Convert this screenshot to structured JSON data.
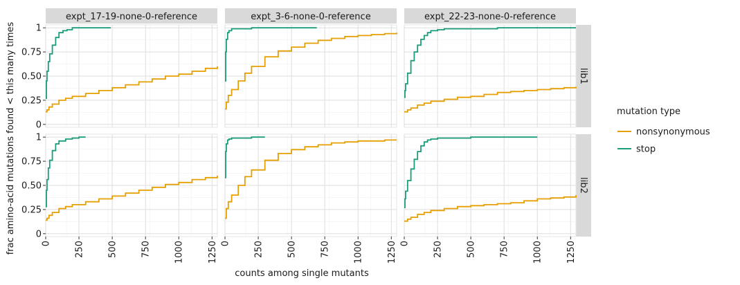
{
  "chart_data": {
    "type": "line",
    "xlabel": "counts among single mutants",
    "ylabel": "frac amino-acid mutations found < this many times",
    "xlim": [
      0,
      1290
    ],
    "ylim": [
      -0.03,
      1.03
    ],
    "x_ticks": [
      "0",
      "250",
      "500",
      "750",
      "1000",
      "1250"
    ],
    "y_ticks": [
      "0",
      "0.25",
      "0.50",
      "0.75",
      "1"
    ],
    "grid": true,
    "legend_position": "right",
    "legend": {
      "title": "mutation type",
      "entries": [
        {
          "name": "nonsynonymous",
          "color": "#E69F00"
        },
        {
          "name": "stop",
          "color": "#1A9C7A"
        }
      ]
    },
    "columns": [
      "expt_17-19-none-0-reference",
      "expt_3-6-none-0-reference",
      "expt_22-23-none-0-reference"
    ],
    "rows": [
      "lib1",
      "lib2"
    ],
    "panels": [
      {
        "row": "lib1",
        "col": "expt_17-19-none-0-reference",
        "series": [
          {
            "name": "nonsynonymous",
            "x": [
              0,
              10,
              25,
              50,
              100,
              150,
              200,
              300,
              400,
              500,
              600,
              700,
              800,
              900,
              1000,
              1100,
              1200,
              1290
            ],
            "y": [
              0.13,
              0.15,
              0.18,
              0.21,
              0.25,
              0.27,
              0.29,
              0.32,
              0.35,
              0.38,
              0.41,
              0.44,
              0.47,
              0.5,
              0.52,
              0.55,
              0.58,
              0.6
            ]
          },
          {
            "name": "stop",
            "x": [
              0,
              5,
              10,
              20,
              30,
              50,
              75,
              100,
              130,
              160,
              200,
              250,
              300,
              400,
              490
            ],
            "y": [
              0.27,
              0.45,
              0.55,
              0.65,
              0.73,
              0.82,
              0.9,
              0.95,
              0.97,
              0.98,
              1.0,
              1.0,
              1.0,
              1.0,
              1.0
            ]
          }
        ]
      },
      {
        "row": "lib1",
        "col": "expt_3-6-none-0-reference",
        "series": [
          {
            "name": "nonsynonymous",
            "x": [
              0,
              10,
              25,
              50,
              100,
              150,
              200,
              300,
              400,
              500,
              600,
              700,
              800,
              900,
              1000,
              1100,
              1200,
              1290
            ],
            "y": [
              0.16,
              0.23,
              0.3,
              0.36,
              0.45,
              0.53,
              0.6,
              0.7,
              0.76,
              0.8,
              0.84,
              0.87,
              0.89,
              0.91,
              0.92,
              0.93,
              0.94,
              0.95
            ]
          },
          {
            "name": "stop",
            "x": [
              0,
              5,
              10,
              20,
              30,
              50,
              100,
              200,
              300,
              500,
              690
            ],
            "y": [
              0.45,
              0.75,
              0.88,
              0.95,
              0.97,
              0.99,
              0.99,
              1.0,
              1.0,
              1.0,
              1.0
            ]
          }
        ]
      },
      {
        "row": "lib1",
        "col": "expt_22-23-none-0-reference",
        "series": [
          {
            "name": "nonsynonymous",
            "x": [
              0,
              25,
              50,
              100,
              150,
              200,
              300,
              400,
              500,
              600,
              700,
              800,
              900,
              1000,
              1100,
              1200,
              1290
            ],
            "y": [
              0.13,
              0.15,
              0.17,
              0.2,
              0.22,
              0.24,
              0.26,
              0.28,
              0.29,
              0.31,
              0.33,
              0.34,
              0.35,
              0.36,
              0.37,
              0.38,
              0.39
            ]
          },
          {
            "name": "stop",
            "x": [
              0,
              5,
              10,
              25,
              50,
              75,
              100,
              125,
              150,
              175,
              200,
              250,
              300,
              400,
              500,
              700,
              1000,
              1290
            ],
            "y": [
              0.28,
              0.35,
              0.42,
              0.53,
              0.66,
              0.75,
              0.82,
              0.88,
              0.92,
              0.95,
              0.97,
              0.98,
              0.99,
              0.99,
              0.99,
              1.0,
              1.0,
              1.0
            ]
          }
        ]
      },
      {
        "row": "lib2",
        "col": "expt_17-19-none-0-reference",
        "series": [
          {
            "name": "nonsynonymous",
            "x": [
              0,
              10,
              25,
              50,
              100,
              150,
              200,
              300,
              400,
              500,
              600,
              700,
              800,
              900,
              1000,
              1100,
              1200,
              1290
            ],
            "y": [
              0.14,
              0.16,
              0.19,
              0.22,
              0.26,
              0.28,
              0.3,
              0.33,
              0.36,
              0.39,
              0.42,
              0.45,
              0.48,
              0.51,
              0.53,
              0.56,
              0.58,
              0.6
            ]
          },
          {
            "name": "stop",
            "x": [
              0,
              5,
              10,
              20,
              30,
              50,
              75,
              100,
              150,
              200,
              250,
              300
            ],
            "y": [
              0.28,
              0.45,
              0.56,
              0.68,
              0.76,
              0.86,
              0.93,
              0.96,
              0.98,
              0.99,
              1.0,
              1.0
            ]
          }
        ]
      },
      {
        "row": "lib2",
        "col": "expt_3-6-none-0-reference",
        "series": [
          {
            "name": "nonsynonymous",
            "x": [
              0,
              10,
              25,
              50,
              100,
              150,
              200,
              300,
              400,
              500,
              600,
              700,
              800,
              900,
              1000,
              1100,
              1200,
              1290
            ],
            "y": [
              0.16,
              0.26,
              0.33,
              0.4,
              0.5,
              0.59,
              0.66,
              0.76,
              0.83,
              0.87,
              0.9,
              0.92,
              0.94,
              0.95,
              0.96,
              0.96,
              0.97,
              0.97
            ]
          },
          {
            "name": "stop",
            "x": [
              0,
              5,
              10,
              20,
              30,
              50,
              100,
              200,
              300
            ],
            "y": [
              0.58,
              0.85,
              0.93,
              0.97,
              0.98,
              0.99,
              0.99,
              1.0,
              1.0
            ]
          }
        ]
      },
      {
        "row": "lib2",
        "col": "expt_22-23-none-0-reference",
        "series": [
          {
            "name": "nonsynonymous",
            "x": [
              0,
              25,
              50,
              100,
              150,
              200,
              300,
              400,
              500,
              600,
              700,
              800,
              900,
              1000,
              1100,
              1200,
              1290
            ],
            "y": [
              0.13,
              0.15,
              0.17,
              0.2,
              0.22,
              0.24,
              0.26,
              0.28,
              0.29,
              0.3,
              0.31,
              0.32,
              0.34,
              0.36,
              0.37,
              0.38,
              0.4
            ]
          },
          {
            "name": "stop",
            "x": [
              0,
              5,
              10,
              25,
              50,
              75,
              100,
              125,
              150,
              175,
              200,
              250,
              300,
              400,
              500,
              700,
              1000
            ],
            "y": [
              0.27,
              0.36,
              0.44,
              0.55,
              0.67,
              0.77,
              0.85,
              0.91,
              0.95,
              0.97,
              0.98,
              0.99,
              0.99,
              0.99,
              1.0,
              1.0,
              1.0
            ]
          }
        ]
      }
    ]
  }
}
